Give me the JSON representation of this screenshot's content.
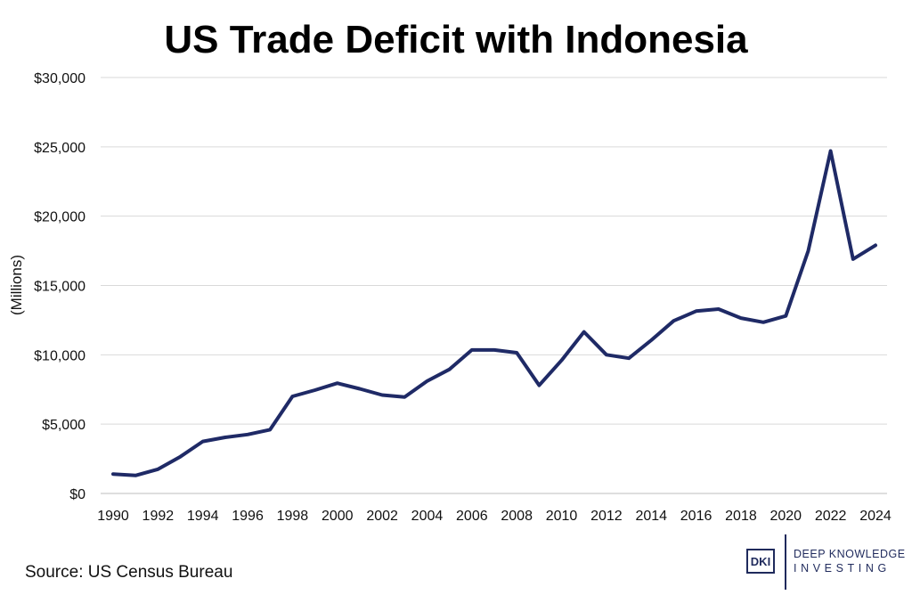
{
  "chart_data": {
    "type": "line",
    "title": "US Trade Deficit with Indonesia",
    "ylabel": "(Millions)",
    "xlabel": "",
    "source": "Source: US Census Bureau",
    "ylim": [
      0,
      30000
    ],
    "yticks": [
      0,
      5000,
      10000,
      15000,
      20000,
      25000,
      30000
    ],
    "ytick_labels": [
      "$0",
      "$5,000",
      "$10,000",
      "$15,000",
      "$20,000",
      "$25,000",
      "$30,000"
    ],
    "xticks": [
      1990,
      1992,
      1994,
      1996,
      1998,
      2000,
      2002,
      2004,
      2006,
      2008,
      2010,
      2012,
      2014,
      2016,
      2018,
      2020,
      2022,
      2024
    ],
    "grid": true,
    "legend": "none",
    "color": "#1f2a66",
    "x": [
      1990,
      1991,
      1992,
      1993,
      1994,
      1995,
      1996,
      1997,
      1998,
      1999,
      2000,
      2001,
      2002,
      2003,
      2004,
      2005,
      2006,
      2007,
      2008,
      2009,
      2010,
      2011,
      2012,
      2013,
      2014,
      2015,
      2016,
      2017,
      2018,
      2019,
      2020,
      2021,
      2022,
      2023,
      2024
    ],
    "series": [
      {
        "values": [
          1400,
          1300,
          1750,
          2650,
          3750,
          4050,
          4250,
          4600,
          7000,
          7450,
          7950,
          7550,
          7100,
          6950,
          8100,
          8950,
          10350,
          10350,
          10150,
          7800,
          9600,
          11650,
          10000,
          9750,
          11050,
          12450,
          13150,
          13300,
          12650,
          12350,
          12800,
          17500,
          24700,
          16900,
          17900
        ]
      }
    ]
  },
  "logo": {
    "mark": "DKI",
    "line1": "DEEP KNOWLEDGE",
    "line2": "INVESTING"
  }
}
